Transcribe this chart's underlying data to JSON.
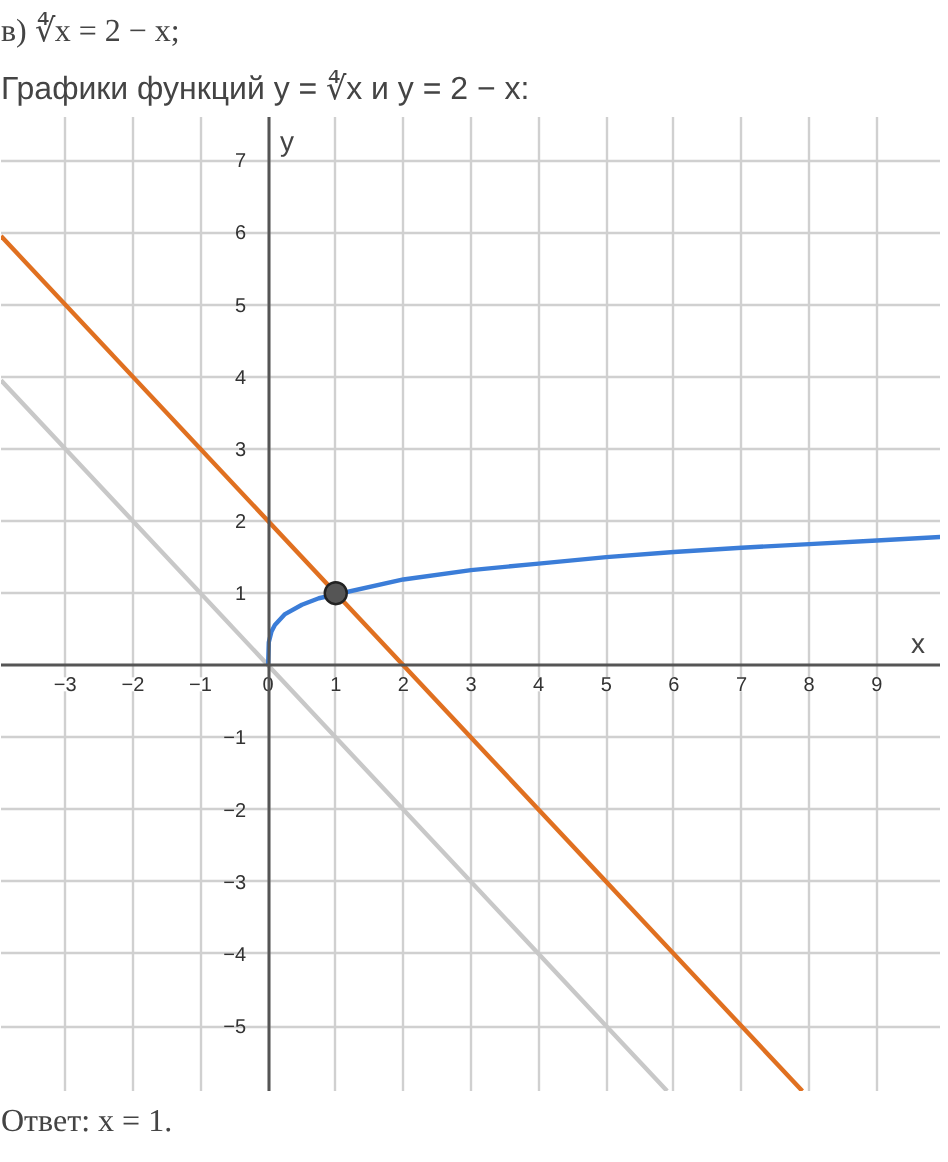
{
  "chart_data": {
    "type": "line",
    "title": "в) ∜x = 2 − x;",
    "subtitle": "Графики функций y = ∜x и y = 2 − x:",
    "xlabel": "x",
    "ylabel": "y",
    "annotations": [
      "Ответ: x = 1."
    ],
    "xlim": [
      -3.95,
      9.95
    ],
    "ylim": [
      -5.9,
      7.6
    ],
    "xticks": [
      -3,
      -2,
      -1,
      0,
      1,
      2,
      3,
      4,
      5,
      6,
      7,
      8,
      9
    ],
    "yticks": [
      -5,
      -4,
      -3,
      -2,
      -1,
      1,
      2,
      3,
      4,
      5,
      6,
      7
    ],
    "grid": true,
    "line_style": "solid",
    "series": [
      {
        "color": "#c8c8c8",
        "x": [
          -3.95,
          5.9
        ],
        "values": [
          3.95,
          -5.9
        ]
      },
      {
        "color": "#e07020",
        "x": [
          -3.95,
          7.9
        ],
        "values": [
          5.95,
          -5.9
        ]
      },
      {
        "color": "#3b7dd8",
        "x": [
          0,
          0.01,
          0.05,
          0.1,
          0.25,
          0.5,
          0.75,
          2,
          3,
          4,
          5,
          6,
          7,
          8,
          9,
          9.95
        ],
        "values": [
          0,
          0.32,
          0.47,
          0.56,
          0.71,
          0.84,
          0.93,
          1.19,
          1.32,
          1.41,
          1.5,
          1.57,
          1.63,
          1.68,
          1.73,
          1.78
        ]
      },
      {
        "type": "scatter",
        "marker": "circle",
        "color": "#555555",
        "x": [
          1
        ],
        "values": [
          1
        ]
      }
    ]
  }
}
